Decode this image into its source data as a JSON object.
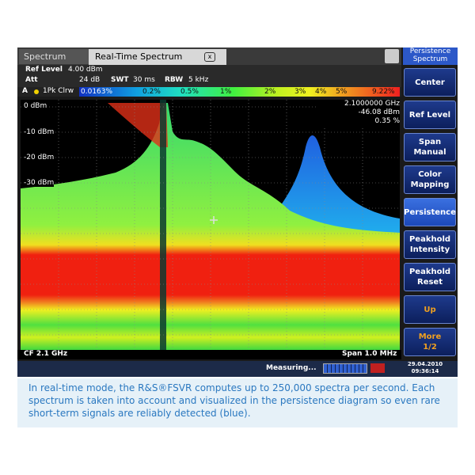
{
  "tabs": [
    "Spectrum",
    "Real-Time Spectrum"
  ],
  "panel_title": "Persistence Spectrum",
  "header": {
    "ref_level_label": "Ref Level",
    "ref_level": "4.00 dBm",
    "att_label": "Att",
    "att": "24 dB",
    "swt_label": "SWT",
    "swt": "30 ms",
    "rbw_label": "RBW",
    "rbw": "5 kHz"
  },
  "trace": {
    "id": "A",
    "label": "1Pk Clrw"
  },
  "color_scale": [
    "0.0163%",
    "0.2%",
    "0.5%",
    "1%",
    "2%",
    "3%",
    "4%",
    "5%",
    "9.22%"
  ],
  "marker": [
    "2.1000000 GHz",
    "-46.08 dBm",
    "0.35 %"
  ],
  "y_labels": [
    "0 dBm",
    "-10 dBm",
    "-20 dBm",
    "-30 dBm"
  ],
  "footer": {
    "left": "CF 2.1 GHz",
    "right": "Span 1.0 MHz"
  },
  "status": {
    "message": "Measuring...",
    "date": "29.04.2010",
    "time": "09:36:14"
  },
  "softkeys": [
    [
      "Center"
    ],
    [
      "Ref Level"
    ],
    [
      "Span",
      "Manual"
    ],
    [
      "Color",
      "Mapping"
    ],
    [
      "Persistence"
    ],
    [
      "Peakhold",
      "Intensity"
    ],
    [
      "Peakhold",
      "Reset"
    ],
    [
      "Up"
    ],
    [
      "More",
      "1/2"
    ]
  ],
  "caption": "In real-time mode, the R&S®FSVR computes up to 250,000 spectra per second. Each spectrum is taken into account and visualized in the persistence diagram so even rare short-term signals are reliably detected (blue)."
}
